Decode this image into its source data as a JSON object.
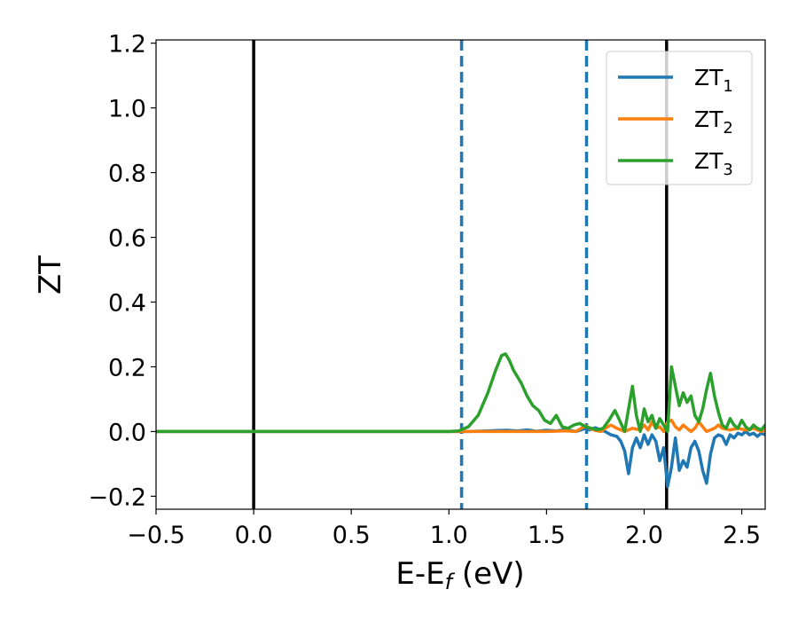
{
  "chart_data": {
    "type": "line",
    "title": "",
    "xlabel": "E-E",
    "xlabel_sub": "f",
    "xlabel_unit": " (eV)",
    "ylabel": "ZT",
    "xlim": [
      -0.5,
      2.62
    ],
    "ylim": [
      -0.24,
      1.21
    ],
    "grid": false,
    "legend_position": "top-right",
    "xticks": [
      {
        "value": -0.5,
        "label": "−0.5"
      },
      {
        "value": 0.0,
        "label": "0.0"
      },
      {
        "value": 0.5,
        "label": "0.5"
      },
      {
        "value": 1.0,
        "label": "1.0"
      },
      {
        "value": 1.5,
        "label": "1.5"
      },
      {
        "value": 2.0,
        "label": "2.0"
      },
      {
        "value": 2.5,
        "label": "2.5"
      }
    ],
    "yticks": [
      {
        "value": -0.2,
        "label": "−0.2"
      },
      {
        "value": 0.0,
        "label": "0.0"
      },
      {
        "value": 0.2,
        "label": "0.2"
      },
      {
        "value": 0.4,
        "label": "0.4"
      },
      {
        "value": 0.6,
        "label": "0.6"
      },
      {
        "value": 0.8,
        "label": "0.8"
      },
      {
        "value": 1.0,
        "label": "1.0"
      },
      {
        "value": 1.2,
        "label": "1.2"
      }
    ],
    "vertical_lines": [
      {
        "x": 0.0,
        "style": "solid",
        "color": "#000000"
      },
      {
        "x": 1.065,
        "style": "dashed",
        "color": "#1f77b4"
      },
      {
        "x": 1.705,
        "style": "dashed",
        "color": "#1f77b4"
      },
      {
        "x": 2.115,
        "style": "solid",
        "color": "#000000"
      }
    ],
    "series": [
      {
        "name": "ZT",
        "name_sub": "1",
        "color": "#1f77b4",
        "x": [
          -0.5,
          0.0,
          0.5,
          1.0,
          1.05,
          1.1,
          1.2,
          1.25,
          1.3,
          1.35,
          1.4,
          1.45,
          1.5,
          1.55,
          1.6,
          1.65,
          1.7,
          1.72,
          1.75,
          1.78,
          1.8,
          1.83,
          1.86,
          1.88,
          1.9,
          1.92,
          1.94,
          1.96,
          1.98,
          2.0,
          2.02,
          2.04,
          2.06,
          2.08,
          2.1,
          2.12,
          2.14,
          2.16,
          2.18,
          2.2,
          2.22,
          2.24,
          2.26,
          2.28,
          2.3,
          2.32,
          2.34,
          2.36,
          2.38,
          2.4,
          2.42,
          2.44,
          2.46,
          2.48,
          2.5,
          2.52,
          2.54,
          2.56,
          2.58,
          2.6,
          2.62
        ],
        "y": [
          0,
          0,
          0,
          0,
          0,
          0,
          0.002,
          0.003,
          0.004,
          0.002,
          0.005,
          0.001,
          0.004,
          0.002,
          0.006,
          0.0,
          0.01,
          0.005,
          0.012,
          0.005,
          0.0,
          -0.01,
          -0.015,
          -0.03,
          -0.06,
          -0.13,
          -0.05,
          -0.02,
          -0.05,
          -0.01,
          -0.04,
          -0.01,
          -0.03,
          -0.09,
          -0.05,
          -0.17,
          -0.11,
          -0.02,
          -0.12,
          -0.09,
          -0.11,
          -0.05,
          -0.03,
          -0.06,
          -0.12,
          -0.16,
          -0.07,
          -0.02,
          -0.01,
          -0.015,
          -0.04,
          -0.01,
          -0.02,
          -0.005,
          -0.01,
          0.0,
          -0.01,
          -0.005,
          -0.015,
          -0.005,
          -0.01
        ]
      },
      {
        "name": "ZT",
        "name_sub": "2",
        "color": "#ff7f0e",
        "x": [
          -0.5,
          0.0,
          0.5,
          1.0,
          1.5,
          1.6,
          1.65,
          1.7,
          1.72,
          1.75,
          1.78,
          1.8,
          1.83,
          1.86,
          1.9,
          1.94,
          1.98,
          2.0,
          2.02,
          2.04,
          2.06,
          2.08,
          2.1,
          2.12,
          2.14,
          2.16,
          2.18,
          2.2,
          2.22,
          2.24,
          2.26,
          2.28,
          2.3,
          2.32,
          2.34,
          2.36,
          2.38,
          2.4,
          2.44,
          2.48,
          2.52,
          2.56,
          2.6,
          2.62
        ],
        "y": [
          0,
          0,
          0,
          0,
          0,
          0.002,
          0.0,
          0.018,
          0.01,
          0.003,
          0.0,
          0.01,
          0.02,
          0.01,
          0.0,
          0.01,
          0.005,
          0.02,
          0.005,
          0.03,
          0.01,
          0.015,
          0.0,
          0.03,
          0.035,
          0.015,
          0.005,
          0.02,
          0.01,
          0.0,
          0.01,
          0.03,
          0.015,
          0.0,
          0.005,
          0.01,
          0.02,
          0.01,
          0.005,
          0.01,
          0.005,
          0.01,
          0.0,
          0.005
        ]
      },
      {
        "name": "ZT",
        "name_sub": "3",
        "color": "#2ca02c",
        "x": [
          -0.5,
          0.0,
          0.5,
          1.0,
          1.05,
          1.1,
          1.15,
          1.2,
          1.24,
          1.27,
          1.29,
          1.31,
          1.33,
          1.35,
          1.37,
          1.4,
          1.43,
          1.46,
          1.49,
          1.52,
          1.55,
          1.58,
          1.61,
          1.64,
          1.67,
          1.7,
          1.73,
          1.76,
          1.79,
          1.82,
          1.85,
          1.87,
          1.9,
          1.92,
          1.94,
          1.96,
          1.98,
          2.0,
          2.02,
          2.04,
          2.06,
          2.08,
          2.1,
          2.12,
          2.14,
          2.16,
          2.18,
          2.2,
          2.22,
          2.24,
          2.26,
          2.28,
          2.3,
          2.32,
          2.34,
          2.36,
          2.38,
          2.4,
          2.42,
          2.44,
          2.46,
          2.48,
          2.5,
          2.52,
          2.54,
          2.56,
          2.58,
          2.6,
          2.62
        ],
        "y": [
          0,
          0,
          0,
          0,
          0.002,
          0.015,
          0.05,
          0.12,
          0.19,
          0.235,
          0.24,
          0.22,
          0.19,
          0.17,
          0.15,
          0.11,
          0.08,
          0.065,
          0.035,
          0.025,
          0.05,
          0.015,
          0.01,
          0.02,
          0.025,
          0.015,
          0.01,
          0.005,
          0.01,
          0.035,
          0.065,
          0.04,
          0.0,
          0.07,
          0.14,
          0.05,
          0.0,
          0.07,
          0.03,
          0.05,
          0.01,
          0.04,
          0.02,
          0.0,
          0.2,
          0.14,
          0.08,
          0.12,
          0.09,
          0.11,
          0.05,
          0.03,
          0.07,
          0.13,
          0.18,
          0.11,
          0.06,
          0.02,
          0.01,
          0.04,
          0.02,
          0.01,
          0.035,
          0.015,
          0.005,
          0.02,
          0.01,
          0.005,
          0.02
        ]
      }
    ]
  }
}
